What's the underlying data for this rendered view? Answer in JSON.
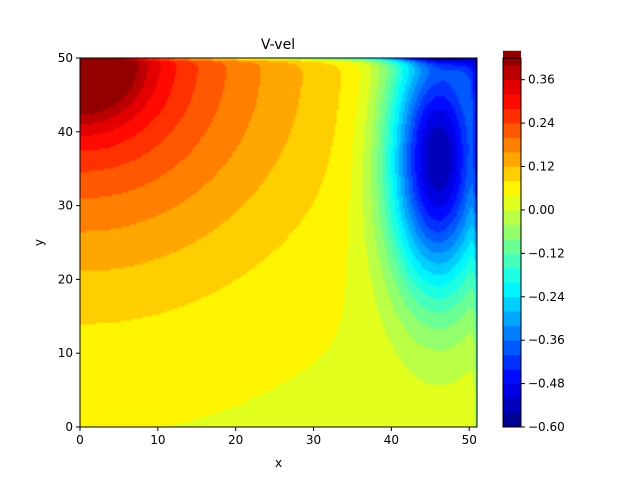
{
  "chart_data": {
    "type": "heatmap",
    "subtype": "filled-contour",
    "title": "V-vel",
    "xlabel": "x",
    "ylabel": "y",
    "xlim": [
      0,
      51
    ],
    "ylim": [
      0,
      50
    ],
    "x_ticks": [
      0,
      10,
      20,
      30,
      40,
      50
    ],
    "y_ticks": [
      0,
      10,
      20,
      30,
      40,
      50
    ],
    "colormap": "jet",
    "colorbar": {
      "range": [
        -0.6,
        0.42
      ],
      "level_step": 0.04,
      "ticks": [
        -0.6,
        -0.48,
        -0.36,
        -0.24,
        -0.12,
        0.0,
        0.12,
        0.24,
        0.36
      ],
      "tick_labels": [
        "−0.60",
        "−0.48",
        "−0.36",
        "−0.24",
        "−0.12",
        "0.00",
        "0.12",
        "0.24",
        "0.36"
      ]
    },
    "field_features": [
      {
        "kind": "maximum",
        "x": 1,
        "y": 47,
        "value": 0.4
      },
      {
        "kind": "minimum",
        "x": 45,
        "y": 38,
        "value": -0.58
      },
      {
        "kind": "sign_change_line",
        "x_approx": 30
      }
    ],
    "legend": "none",
    "grid": false
  }
}
